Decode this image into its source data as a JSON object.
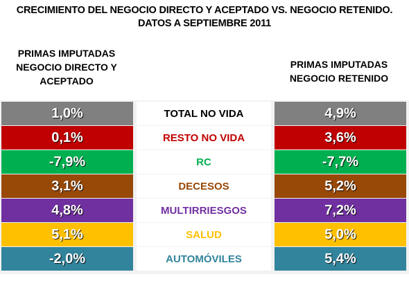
{
  "title": {
    "line1": "CRECIMIENTO DEL NEGOCIO DIRECTO Y ACEPTADO VS. NEGOCIO RETENIDO.",
    "line2": "DATOS A SEPTIEMBRE 2011"
  },
  "headers": {
    "left": [
      "PRIMAS IMPUTADAS",
      "NEGOCIO DIRECTO Y",
      "ACEPTADO"
    ],
    "right": [
      "PRIMAS IMPUTADAS",
      "NEGOCIO RETENIDO"
    ]
  },
  "rows": [
    {
      "category": "TOTAL NO VIDA",
      "directo": "1,0%",
      "retenido": "4,9%",
      "color": "#808080",
      "label_color": "#000000"
    },
    {
      "category": "RESTO NO VIDA",
      "directo": "0,1%",
      "retenido": "3,6%",
      "color": "#c00000",
      "label_color": "#c00000"
    },
    {
      "category": "RC",
      "directo": "-7,9%",
      "retenido": "-7,7%",
      "color": "#00b050",
      "label_color": "#00b050"
    },
    {
      "category": "DECESOS",
      "directo": "3,1%",
      "retenido": "5,2%",
      "color": "#984807",
      "label_color": "#984807"
    },
    {
      "category": "MULTIRRIESGOS",
      "directo": "4,8%",
      "retenido": "7,2%",
      "color": "#7030a0",
      "label_color": "#7030a0"
    },
    {
      "category": "SALUD",
      "directo": "5,1%",
      "retenido": "5,0%",
      "color": "#ffc000",
      "label_color": "#ffc000"
    },
    {
      "category": "AUTOMÓVILES",
      "directo": "-2,0%",
      "retenido": "5,4%",
      "color": "#31849b",
      "label_color": "#31849b"
    }
  ]
}
